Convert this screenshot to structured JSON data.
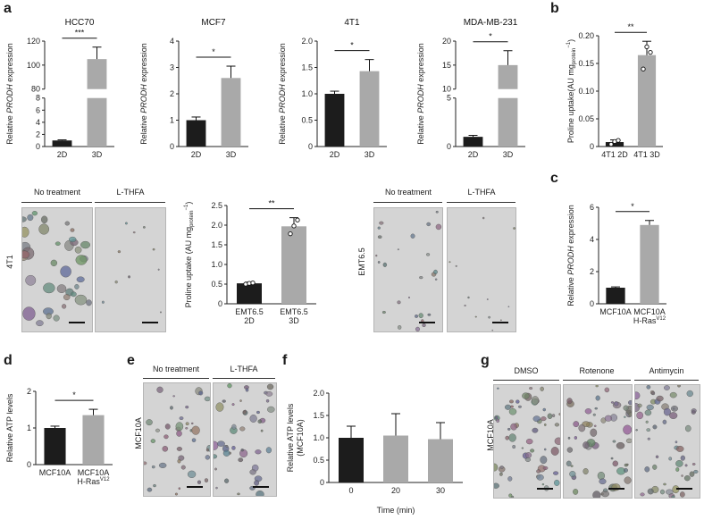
{
  "panel_letters": [
    "a",
    "b",
    "c",
    "d",
    "e",
    "f",
    "g"
  ],
  "colors": {
    "dark_bar": "#1c1c1c",
    "light_bar": "#a9a9a9",
    "axis": "#222222"
  },
  "images": {
    "a_4t1": {
      "side_label": "4T1",
      "headers": [
        "No treatment",
        "L-THFA"
      ]
    },
    "a_emt": {
      "side_label": "EMT6.5",
      "headers": [
        "No treatment",
        "L-THFA"
      ]
    },
    "e": {
      "side_label": "MCF10A",
      "headers": [
        "No treatment",
        "L-THFA"
      ]
    },
    "g": {
      "side_label": "MCF10A",
      "headers": [
        "DMSO",
        "Rotenone",
        "Antimycin"
      ]
    }
  },
  "chart_data": [
    {
      "id": "a1",
      "type": "bar",
      "title": "HCC70",
      "ylabel_pre": "Relative ",
      "ylabel_em": "PRODH",
      "ylabel_post": " expression",
      "categories": [
        "2D",
        "3D"
      ],
      "values": [
        1,
        105
      ],
      "errors": [
        0.1,
        10
      ],
      "axis_break": true,
      "ylim_low": [
        0,
        8
      ],
      "ylim_high": [
        80,
        120
      ],
      "yticks_low": [
        "0",
        "2",
        "4",
        "6",
        "8"
      ],
      "yticks_high": [
        "80",
        "100",
        "120"
      ],
      "sig": "***"
    },
    {
      "id": "a2",
      "type": "bar",
      "title": "MCF7",
      "ylabel_pre": "Relative ",
      "ylabel_em": "PRODH",
      "ylabel_post": " expression",
      "categories": [
        "2D",
        "3D"
      ],
      "values": [
        1,
        2.6
      ],
      "errors": [
        0.12,
        0.45
      ],
      "ylim": [
        0,
        4
      ],
      "yticks": [
        "0",
        "1",
        "2",
        "3",
        "4"
      ],
      "sig": "*"
    },
    {
      "id": "a3",
      "type": "bar",
      "title": "4T1",
      "ylabel_pre": "Relative ",
      "ylabel_em": "PRODH",
      "ylabel_post": " expression",
      "categories": [
        "2D",
        "3D"
      ],
      "values": [
        1,
        1.43
      ],
      "errors": [
        0.05,
        0.22
      ],
      "ylim": [
        0,
        2
      ],
      "yticks": [
        "0",
        "0.5",
        "1.0",
        "1.5",
        "2.0"
      ],
      "sig": "*"
    },
    {
      "id": "a4",
      "type": "bar",
      "title": "MDA-MB-231",
      "ylabel_pre": "Relative ",
      "ylabel_em": "PRODH",
      "ylabel_post": " expression",
      "categories": [
        "2D",
        "3D"
      ],
      "values": [
        1,
        15
      ],
      "errors": [
        0.15,
        3
      ],
      "axis_break": true,
      "ylim_low": [
        0,
        5
      ],
      "ylim_high": [
        10,
        20
      ],
      "yticks_low": [
        "0",
        "5"
      ],
      "yticks_high": [
        "10",
        "15",
        "20"
      ],
      "sig": "*"
    },
    {
      "id": "b",
      "type": "bar",
      "title": "",
      "ylabel_pre": "Proline uptake(AU mg",
      "ylabel_sub": "protein",
      "ylabel_sup": "−1",
      "ylabel_post": ")",
      "categories": [
        "4T1 2D",
        "4T1 3D"
      ],
      "values": [
        0.008,
        0.165
      ],
      "errors": [
        0.004,
        0.025
      ],
      "points": [
        [
          0.004,
          0.009,
          0.011
        ],
        [
          0.14,
          0.18,
          0.17
        ]
      ],
      "ylim": [
        0,
        0.2
      ],
      "yticks": [
        "0",
        "0.05",
        "0.10",
        "0.15",
        "0.20"
      ],
      "sig": "**"
    },
    {
      "id": "a5",
      "type": "bar",
      "title": "",
      "ylabel_pre": "Proline uptake (AU mg",
      "ylabel_sub": "protein",
      "ylabel_sup": "−1",
      "ylabel_post": ")",
      "categories": [
        "EMT6.5\n2D",
        "EMT6.5\n3D"
      ],
      "values": [
        0.52,
        1.97
      ],
      "errors": [
        0.03,
        0.22
      ],
      "points": [
        [
          0.5,
          0.52,
          0.53
        ],
        [
          1.78,
          1.98,
          2.13
        ]
      ],
      "ylim": [
        0,
        2.5
      ],
      "yticks": [
        "0",
        "0.5",
        "1.0",
        "1.5",
        "2.0",
        "2.5"
      ],
      "sig": "**"
    },
    {
      "id": "c",
      "type": "bar",
      "title": "",
      "ylabel_pre": "Relative ",
      "ylabel_em": "PRODH",
      "ylabel_post": " expression",
      "categories": [
        "MCF10A",
        "MCF10A\nH-Ras"
      ],
      "cat_sup": [
        "",
        "V12"
      ],
      "values": [
        1,
        4.9
      ],
      "errors": [
        0.05,
        0.28
      ],
      "ylim": [
        0,
        6
      ],
      "yticks": [
        "0",
        "2",
        "4",
        "6"
      ],
      "sig": "*"
    },
    {
      "id": "d",
      "type": "bar",
      "title": "",
      "ylabel_pre": "Relative ATP levels",
      "categories": [
        "MCF10A",
        "MCF10A\nH-Ras"
      ],
      "cat_sup": [
        "",
        "V12"
      ],
      "values": [
        1,
        1.35
      ],
      "errors": [
        0.05,
        0.16
      ],
      "ylim": [
        0,
        2
      ],
      "yticks": [
        "0",
        "1",
        "2"
      ],
      "sig": "*"
    },
    {
      "id": "f",
      "type": "bar",
      "title": "",
      "ylabel_pre": "Relative ATP levels",
      "ylabel_line2": "(MCF10A)",
      "xlabel": "Time (min)",
      "categories": [
        "0",
        "20",
        "30"
      ],
      "values": [
        1,
        1.05,
        0.97
      ],
      "errors": [
        0.26,
        0.49,
        0.37
      ],
      "ylim": [
        0,
        2
      ],
      "yticks": [
        "0",
        "0.5",
        "1.0",
        "1.5",
        "2.0"
      ],
      "sig": ""
    }
  ]
}
